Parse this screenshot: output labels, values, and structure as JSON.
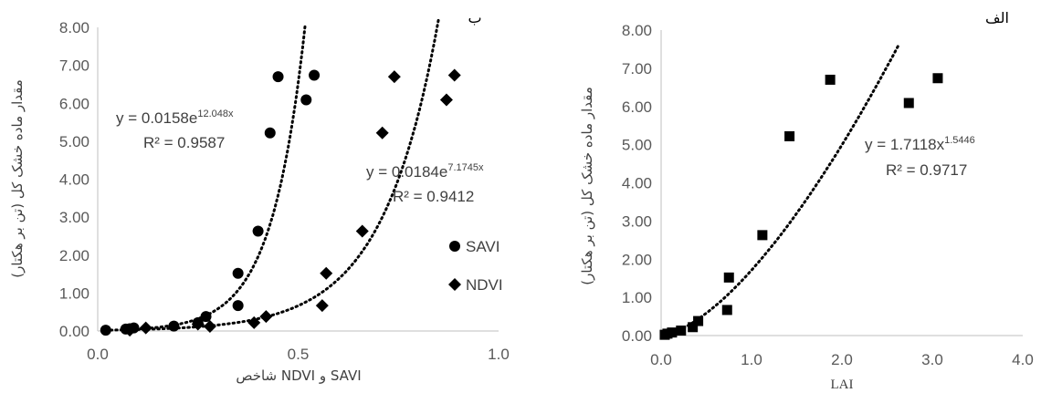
{
  "chart_data": [
    {
      "id": "b",
      "type": "scatter",
      "panel_label": "ب",
      "xlabel": "شاخص NDVI و SAVI",
      "ylabel": "مقدار ماده خشک کل (تن بر هکتار)",
      "xlim": [
        0,
        1
      ],
      "ylim": [
        0,
        8
      ],
      "xticks": [
        "0.0",
        "0.5",
        "1.0"
      ],
      "yticks": [
        "0.00",
        "1.00",
        "2.00",
        "3.00",
        "4.00",
        "5.00",
        "6.00",
        "7.00",
        "8.00"
      ],
      "grid": false,
      "legend_position": "right",
      "series": [
        {
          "name": "SAVI",
          "marker": "circle",
          "x": [
            0.02,
            0.07,
            0.08,
            0.09,
            0.19,
            0.25,
            0.27,
            0.35,
            0.35,
            0.4,
            0.43,
            0.45,
            0.52,
            0.54
          ],
          "y": [
            0.02,
            0.05,
            0.06,
            0.08,
            0.13,
            0.22,
            0.38,
            0.67,
            1.52,
            2.63,
            5.22,
            6.7,
            6.09,
            6.74
          ],
          "fit": {
            "equation_base": "y = 0.0158e",
            "equation_exp": "12.048x",
            "r2": "R² = 0.9587",
            "a": 0.0158,
            "b": 12.048,
            "x_start": 0.02,
            "x_end": 0.518
          }
        },
        {
          "name": "NDVI",
          "marker": "diamond",
          "x": [
            0.08,
            0.12,
            0.25,
            0.28,
            0.39,
            0.42,
            0.56,
            0.57,
            0.66,
            0.71,
            0.74,
            0.87,
            0.89
          ],
          "y": [
            0.02,
            0.08,
            0.18,
            0.12,
            0.22,
            0.38,
            0.67,
            1.52,
            2.63,
            5.22,
            6.7,
            6.09,
            6.74
          ],
          "fit": {
            "equation_base": "y = 0.0184e",
            "equation_exp": "7.1745x",
            "r2": "R² = 0.9412",
            "a": 0.0184,
            "b": 7.1745,
            "x_start": 0.1,
            "x_end": 0.85
          }
        }
      ]
    },
    {
      "id": "alef",
      "type": "scatter",
      "panel_label": "الف",
      "xlabel": "LAI",
      "ylabel": "مقدار ماده خشک کل (تن بر هکتار)",
      "xlim": [
        0,
        4
      ],
      "ylim": [
        0,
        8
      ],
      "xticks": [
        "0.0",
        "1.0",
        "2.0",
        "3.0",
        "4.0"
      ],
      "yticks": [
        "0.00",
        "1.00",
        "2.00",
        "3.00",
        "4.00",
        "5.00",
        "6.00",
        "7.00",
        "8.00"
      ],
      "grid": false,
      "series": [
        {
          "name": "",
          "marker": "square",
          "x": [
            0.04,
            0.07,
            0.12,
            0.22,
            0.35,
            0.41,
            0.73,
            0.75,
            1.12,
            1.42,
            1.87,
            2.74,
            3.06
          ],
          "y": [
            0.02,
            0.05,
            0.08,
            0.13,
            0.22,
            0.38,
            0.67,
            1.52,
            2.63,
            5.22,
            6.7,
            6.09,
            6.74
          ],
          "fit": {
            "equation_base": "y = 1.7118x",
            "equation_exp": "1.5446",
            "r2": "R² = 0.9717",
            "a": 1.7118,
            "b": 1.5446,
            "x_start": 0.04,
            "x_end": 2.63
          }
        }
      ]
    }
  ]
}
